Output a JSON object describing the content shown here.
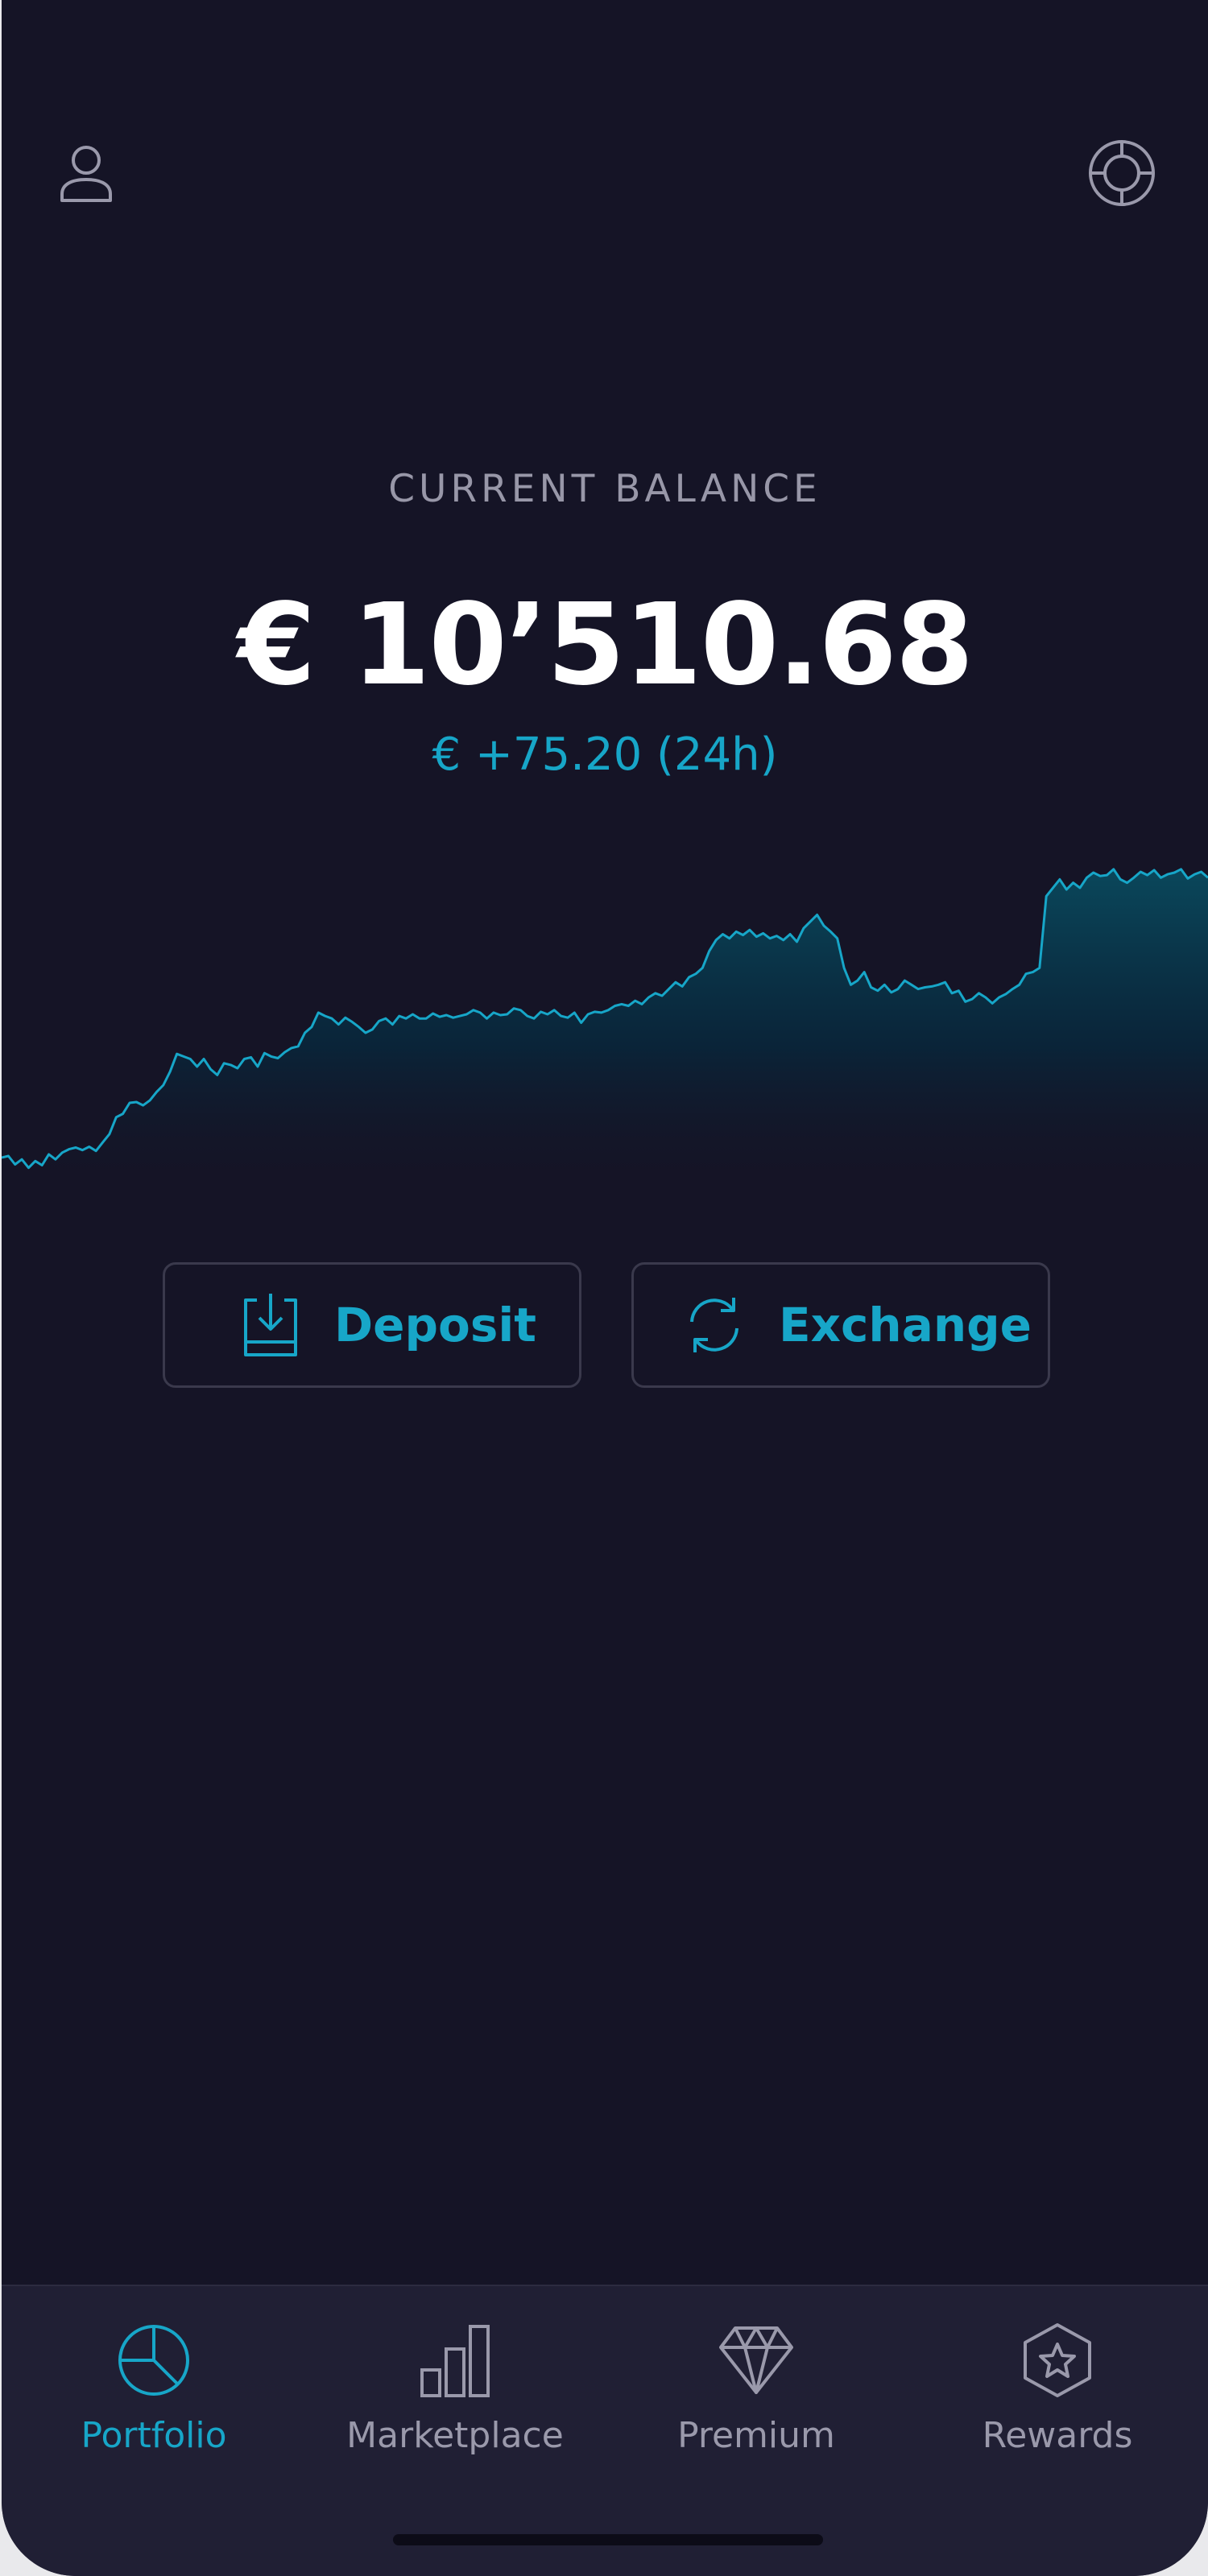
{
  "header": {
    "profile_icon": "user-icon",
    "settings_icon": "lifebuoy-icon"
  },
  "balance": {
    "label": "CURRENT BALANCE",
    "value": "€ 10’510.68",
    "change": "€ +75.20 (24h)"
  },
  "actions": {
    "deposit_label": "Deposit",
    "exchange_label": "Exchange"
  },
  "chart_data": {
    "type": "area",
    "values": [
      380,
      382,
      372,
      378,
      368,
      376,
      371,
      384,
      378,
      386,
      390,
      392,
      389,
      393,
      388,
      398,
      408,
      428,
      432,
      445,
      446,
      442,
      448,
      458,
      466,
      482,
      503,
      500,
      497,
      488,
      497,
      485,
      478,
      492,
      490,
      486,
      497,
      499,
      488,
      504,
      500,
      498,
      505,
      510,
      512,
      528,
      535,
      552,
      548,
      545,
      538,
      546,
      541,
      535,
      528,
      532,
      542,
      545,
      538,
      548,
      545,
      550,
      545,
      545,
      551,
      547,
      549,
      546,
      548,
      550,
      555,
      552,
      545,
      552,
      549,
      550,
      557,
      555,
      548,
      545,
      553,
      550,
      555,
      548,
      546,
      552,
      540,
      550,
      553,
      552,
      555,
      560,
      562,
      560,
      566,
      562,
      570,
      575,
      572,
      580,
      588,
      583,
      594,
      598,
      605,
      625,
      638,
      645,
      640,
      648,
      644,
      650,
      642,
      646,
      640,
      643,
      638,
      645,
      636,
      652,
      660,
      668,
      655,
      648,
      640,
      605,
      585,
      590,
      600,
      582,
      578,
      585,
      576,
      580,
      590,
      585,
      580,
      582,
      583,
      585,
      588,
      575,
      578,
      565,
      568,
      575,
      570,
      563,
      570,
      574,
      580,
      585,
      598,
      600,
      605,
      690,
      700,
      710,
      698,
      706,
      700,
      712,
      718,
      714,
      715,
      722,
      710,
      706,
      712,
      719,
      715,
      721,
      712,
      716,
      718,
      722,
      711,
      716,
      719,
      712
    ],
    "colors": {
      "line": "#17a6c8"
    }
  },
  "tabbar": {
    "tabs": [
      {
        "label": "Portfolio",
        "icon": "pie-chart-icon",
        "active": true
      },
      {
        "label": "Marketplace",
        "icon": "bar-chart-icon",
        "active": false
      },
      {
        "label": "Premium",
        "icon": "diamond-icon",
        "active": false
      },
      {
        "label": "Rewards",
        "icon": "star-badge-icon",
        "active": false
      }
    ]
  },
  "colors": {
    "background": "#151426",
    "accent": "#17a6c8",
    "tabbar": "#201f34",
    "muted": "#9a99ab"
  }
}
